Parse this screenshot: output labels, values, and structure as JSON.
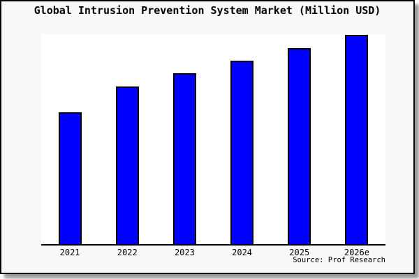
{
  "window": {
    "background": "#ffffff"
  },
  "card": {
    "background": "#f8f8f8",
    "border_color": "#000000",
    "shadow_color": "#9a9a9a"
  },
  "chart_data": {
    "type": "bar",
    "title": "Global Intrusion Prevention System Market (Million USD)",
    "categories": [
      "2021",
      "2022",
      "2023",
      "2024",
      "2025",
      "2026e"
    ],
    "values": [
      62.9,
      75.2,
      81.5,
      87.7,
      93.5,
      100
    ],
    "value_note": "no y-axis ticks or data labels shown; values estimated as bar height percent of tallest bar (2026e)",
    "xlabel": "",
    "ylabel": "",
    "ylim": [
      0,
      100.3
    ],
    "grid": false,
    "legend": "none",
    "y_axis_visible": false,
    "bar_color": "#0000ff",
    "bar_border_color": "#000000",
    "source_note": "Source: Prof Research"
  }
}
